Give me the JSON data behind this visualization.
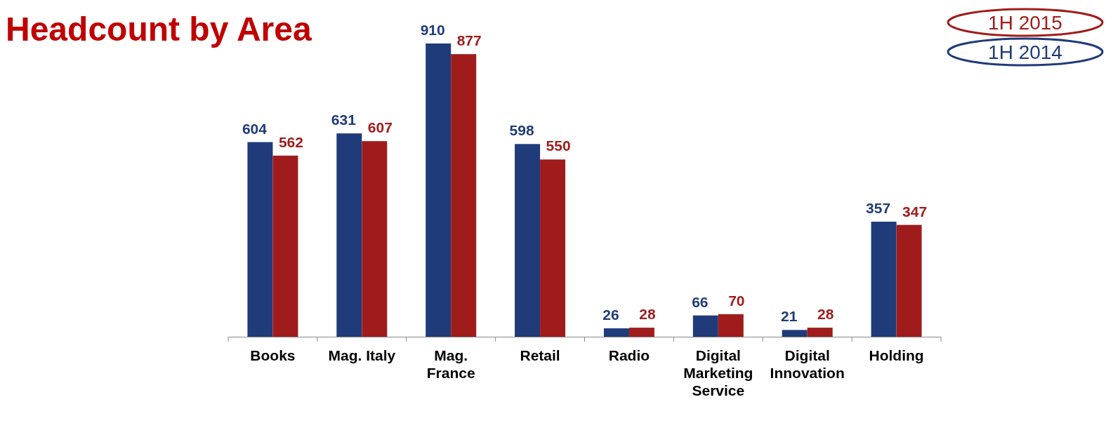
{
  "chart_data": {
    "type": "bar",
    "title": "Headcount by Area",
    "categories": [
      "Books",
      "Mag. Italy",
      "Mag. France",
      "Retail",
      "Radio",
      "Digital Marketing Service",
      "Digital Innovation",
      "Holding"
    ],
    "series": [
      {
        "name": "1H 2014",
        "color": "#1f3b7a",
        "values": [
          604,
          631,
          910,
          598,
          26,
          66,
          21,
          357
        ]
      },
      {
        "name": "1H 2015",
        "color": "#a01c1c",
        "values": [
          562,
          607,
          877,
          550,
          28,
          70,
          28,
          347
        ]
      }
    ],
    "data_labels": true,
    "legend": "top right",
    "grid": false
  }
}
